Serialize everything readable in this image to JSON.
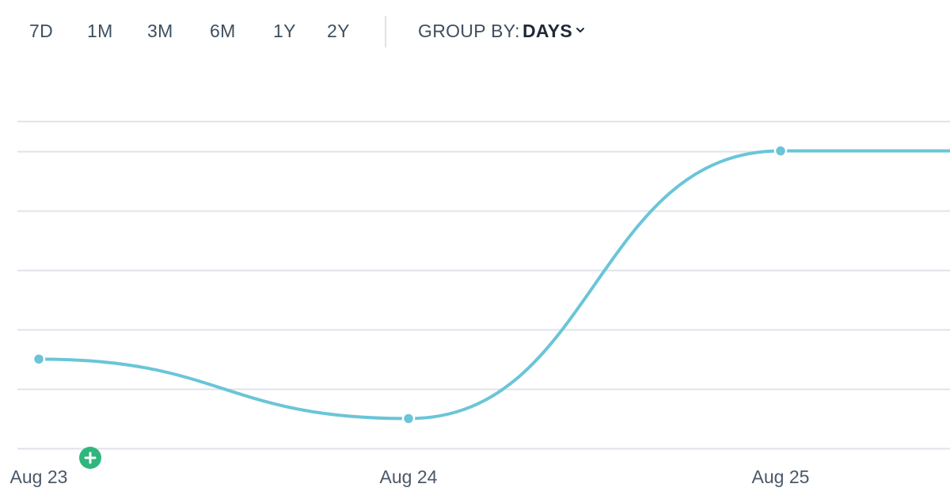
{
  "toolbar": {
    "ranges": [
      {
        "label": "7D"
      },
      {
        "label": "1M"
      },
      {
        "label": "3M"
      },
      {
        "label": "6M"
      },
      {
        "label": "1Y"
      },
      {
        "label": "2Y"
      }
    ],
    "group_by_label": "GROUP BY:",
    "group_by_value": "DAYS",
    "dropdown_icon": "chevron-down-icon"
  },
  "add_button": {
    "icon": "plus-icon",
    "color": "#2fb67d"
  },
  "colors": {
    "series": "#6ac5d8",
    "grid": "#dfe3ea",
    "axis_text": "#4a5868"
  },
  "chart_data": {
    "type": "line",
    "x": [
      "Aug 23",
      "Aug 24",
      "Aug 25"
    ],
    "series": [
      {
        "values": [
          1.5,
          0.5,
          5
        ]
      }
    ],
    "ylim": [
      0,
      5.5
    ],
    "grid": true,
    "smooth": true
  }
}
